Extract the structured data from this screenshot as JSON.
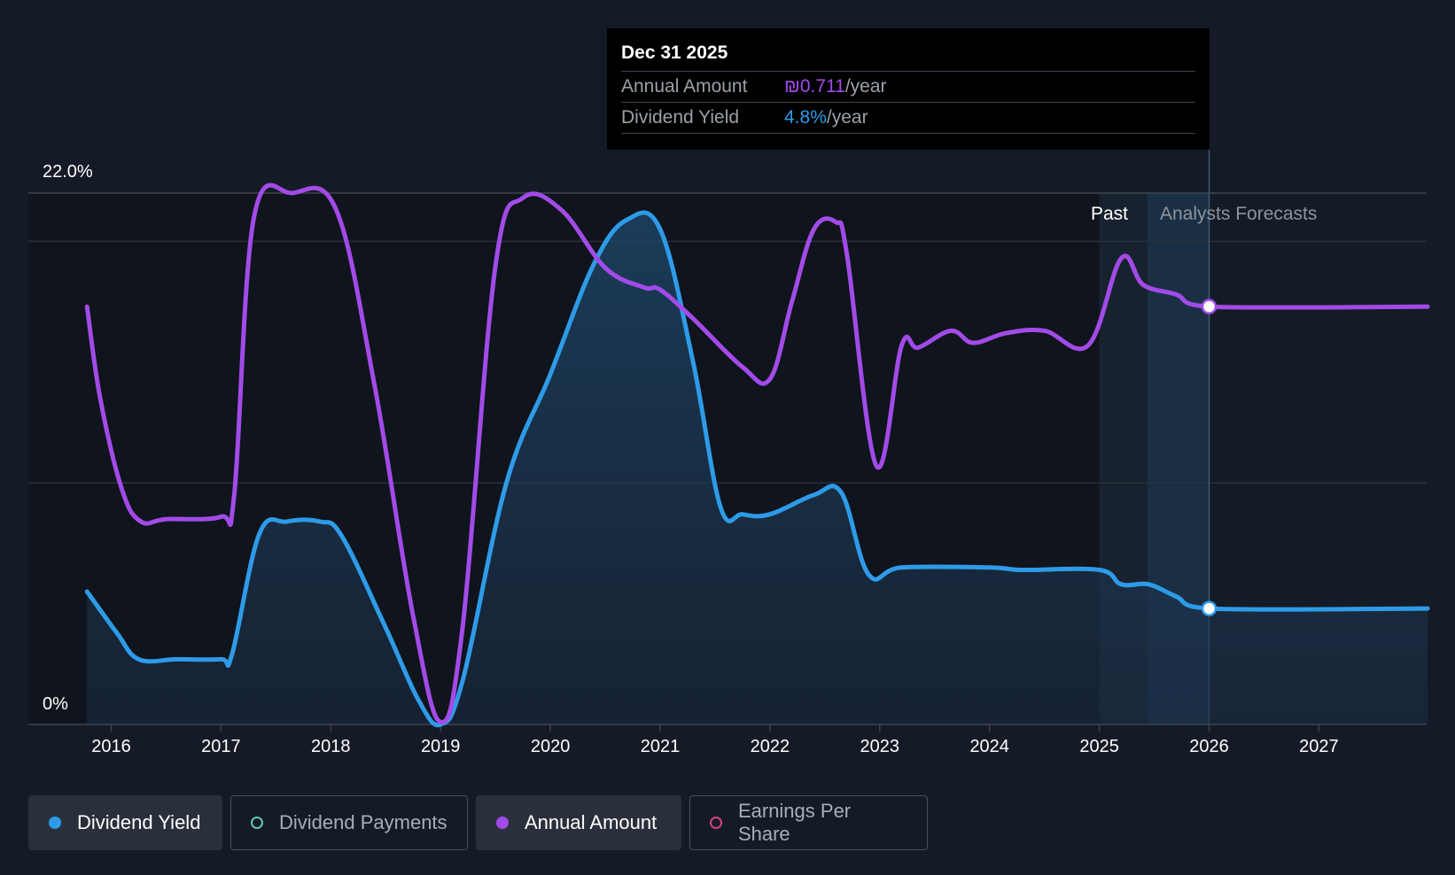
{
  "tooltip": {
    "date": "Dec 31 2025",
    "annual_amount_label": "Annual Amount",
    "annual_amount_value": "₪0.711",
    "annual_amount_unit": "/year",
    "dividend_yield_label": "Dividend Yield",
    "dividend_yield_value": "4.8%",
    "dividend_yield_unit": "/year"
  },
  "regions": {
    "past": "Past",
    "forecast": "Analysts Forecasts"
  },
  "legend": [
    {
      "label": "Dividend Yield",
      "color": "#2e9be8",
      "active": true,
      "filled": true
    },
    {
      "label": "Dividend Payments",
      "color": "#5ec8b8",
      "active": false,
      "filled": false
    },
    {
      "label": "Annual Amount",
      "color": "#a24be8",
      "active": true,
      "filled": true
    },
    {
      "label": "Earnings Per Share",
      "color": "#d0457c",
      "active": false,
      "filled": false
    }
  ],
  "colors": {
    "yield": "#2e9be8",
    "annual": "#a24be8",
    "background": "#151b26"
  },
  "chart_data": {
    "type": "line",
    "xlim": [
      2015.75,
      2027.99
    ],
    "ylim": [
      0,
      22.0
    ],
    "x_ticks": [
      2016,
      2017,
      2018,
      2019,
      2020,
      2021,
      2022,
      2023,
      2024,
      2025,
      2026,
      2027
    ],
    "y_tick_labels": [
      "0%",
      "22.0%"
    ],
    "grid": true,
    "forecast_start": 2026.0,
    "series": [
      {
        "name": "Dividend Yield",
        "unit": "%",
        "color": "#2e9be8",
        "area": true,
        "points": [
          [
            2015.78,
            5.5
          ],
          [
            2016.05,
            3.8
          ],
          [
            2016.25,
            2.7
          ],
          [
            2016.6,
            2.7
          ],
          [
            2017.0,
            2.7
          ],
          [
            2017.1,
            2.9
          ],
          [
            2017.35,
            7.9
          ],
          [
            2017.6,
            8.4
          ],
          [
            2017.9,
            8.4
          ],
          [
            2018.1,
            7.8
          ],
          [
            2018.5,
            4.0
          ],
          [
            2018.8,
            1.0
          ],
          [
            2019.0,
            0.0
          ],
          [
            2019.2,
            1.8
          ],
          [
            2019.6,
            10.0
          ],
          [
            2020.0,
            14.5
          ],
          [
            2020.4,
            19.1
          ],
          [
            2020.7,
            20.9
          ],
          [
            2021.0,
            20.5
          ],
          [
            2021.3,
            15.0
          ],
          [
            2021.55,
            9.0
          ],
          [
            2021.75,
            8.7
          ],
          [
            2022.0,
            8.7
          ],
          [
            2022.4,
            9.5
          ],
          [
            2022.65,
            9.6
          ],
          [
            2022.9,
            6.2
          ],
          [
            2023.2,
            6.5
          ],
          [
            2024.0,
            6.5
          ],
          [
            2024.3,
            6.4
          ],
          [
            2025.0,
            6.4
          ],
          [
            2025.2,
            5.8
          ],
          [
            2025.45,
            5.8
          ],
          [
            2025.7,
            5.3
          ],
          [
            2026.0,
            4.8
          ],
          [
            2027.99,
            4.8
          ]
        ]
      },
      {
        "name": "Annual Amount",
        "unit": "₪",
        "color": "#a24be8",
        "area": false,
        "points": [
          [
            2015.78,
            17.3
          ],
          [
            2015.9,
            13.5
          ],
          [
            2016.1,
            9.7
          ],
          [
            2016.27,
            8.4
          ],
          [
            2016.5,
            8.5
          ],
          [
            2017.0,
            8.6
          ],
          [
            2017.12,
            9.5
          ],
          [
            2017.3,
            21.0
          ],
          [
            2017.65,
            22.0
          ],
          [
            2018.05,
            21.3
          ],
          [
            2018.4,
            14.0
          ],
          [
            2018.75,
            4.5
          ],
          [
            2019.0,
            0.1
          ],
          [
            2019.2,
            4.0
          ],
          [
            2019.5,
            19.0
          ],
          [
            2019.75,
            21.8
          ],
          [
            2020.1,
            21.3
          ],
          [
            2020.5,
            18.9
          ],
          [
            2020.85,
            18.1
          ],
          [
            2021.0,
            18.0
          ],
          [
            2021.3,
            16.8
          ],
          [
            2021.75,
            14.8
          ],
          [
            2022.0,
            14.3
          ],
          [
            2022.2,
            17.5
          ],
          [
            2022.4,
            20.5
          ],
          [
            2022.6,
            20.8
          ],
          [
            2022.7,
            19.5
          ],
          [
            2022.97,
            10.7
          ],
          [
            2023.2,
            15.7
          ],
          [
            2023.35,
            15.6
          ],
          [
            2023.65,
            16.3
          ],
          [
            2023.85,
            15.8
          ],
          [
            2024.15,
            16.2
          ],
          [
            2024.5,
            16.3
          ],
          [
            2024.9,
            15.7
          ],
          [
            2025.2,
            19.3
          ],
          [
            2025.4,
            18.2
          ],
          [
            2025.7,
            17.8
          ],
          [
            2026.0,
            17.3
          ],
          [
            2027.99,
            17.3
          ]
        ]
      }
    ]
  }
}
